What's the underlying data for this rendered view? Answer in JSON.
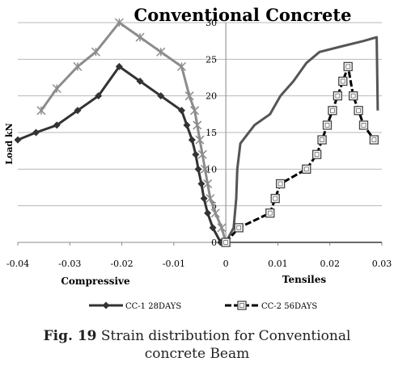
{
  "chart_data": {
    "type": "line",
    "title": "Conventional Concrete",
    "ylabel": "Load kN",
    "xlabel_left": "Compressive",
    "xlabel_right": "Tensiles",
    "xlim": [
      -0.04,
      0.03
    ],
    "ylim": [
      0,
      30
    ],
    "x_ticks": [
      -0.04,
      -0.03,
      -0.02,
      -0.01,
      0,
      0.01,
      0.02,
      0.03
    ],
    "x_tick_labels": [
      "-0.04",
      "-0.03",
      "-0.02",
      "-0.01",
      "0",
      "0.01",
      "0.02",
      "0.03"
    ],
    "y_ticks": [
      0,
      5,
      10,
      15,
      20,
      25,
      30
    ],
    "y_tick_labels": [
      "0",
      "5",
      "10",
      "15",
      "20",
      "25",
      "30"
    ],
    "grid": "horizontal",
    "legend_placement": "bottom",
    "series": [
      {
        "name": "CC-1 28DAYS",
        "color": "#333333",
        "marker": "diamond",
        "points": [
          [
            -0.04,
            14
          ],
          [
            -0.0365,
            15
          ],
          [
            -0.0325,
            16
          ],
          [
            -0.0285,
            18
          ],
          [
            -0.0245,
            20
          ],
          [
            -0.0205,
            24
          ],
          [
            -0.0165,
            22
          ],
          [
            -0.0125,
            20
          ],
          [
            -0.0085,
            18
          ],
          [
            -0.0075,
            16
          ],
          [
            -0.0065,
            14
          ],
          [
            -0.0058,
            12
          ],
          [
            -0.0053,
            10
          ],
          [
            -0.0047,
            8
          ],
          [
            -0.0042,
            6
          ],
          [
            -0.0035,
            4
          ],
          [
            -0.0025,
            2
          ],
          [
            -0.001,
            0
          ],
          [
            0,
            0
          ]
        ]
      },
      {
        "name": "CC-2 56DAYS",
        "color": "#000000",
        "marker": "square",
        "dash": true,
        "points": [
          [
            0,
            0
          ],
          [
            0.0025,
            2
          ],
          [
            0.0085,
            4
          ],
          [
            0.0095,
            6
          ],
          [
            0.0105,
            8
          ],
          [
            0.0155,
            10
          ],
          [
            0.0175,
            12
          ],
          [
            0.0185,
            14
          ],
          [
            0.0195,
            16
          ],
          [
            0.0205,
            18
          ],
          [
            0.0215,
            20
          ],
          [
            0.0225,
            22
          ],
          [
            0.0235,
            24
          ],
          [
            0.0245,
            20
          ],
          [
            0.0255,
            18
          ],
          [
            0.0265,
            16
          ],
          [
            0.0285,
            14
          ]
        ]
      },
      {
        "color": "#8c8c8c",
        "marker": "star",
        "points": [
          [
            -0.0355,
            18
          ],
          [
            -0.0325,
            21
          ],
          [
            -0.0285,
            24
          ],
          [
            -0.025,
            26
          ],
          [
            -0.0205,
            30
          ],
          [
            -0.0165,
            28
          ],
          [
            -0.0125,
            26
          ],
          [
            -0.0085,
            24
          ],
          [
            -0.007,
            20
          ],
          [
            -0.006,
            18
          ],
          [
            -0.0055,
            16
          ],
          [
            -0.005,
            14
          ],
          [
            -0.0045,
            12
          ],
          [
            -0.004,
            10
          ],
          [
            -0.0035,
            8
          ],
          [
            -0.003,
            6
          ],
          [
            -0.002,
            4
          ],
          [
            -0.0008,
            2
          ],
          [
            0,
            0
          ]
        ]
      },
      {
        "color": "#555555",
        "marker": "none",
        "points": [
          [
            0,
            0
          ],
          [
            0.0015,
            2
          ],
          [
            0.002,
            6
          ],
          [
            0.0022,
            10
          ],
          [
            0.0028,
            13.5
          ],
          [
            0.0055,
            16
          ],
          [
            0.0085,
            17.5
          ],
          [
            0.0105,
            20
          ],
          [
            0.013,
            22
          ],
          [
            0.0155,
            24.5
          ],
          [
            0.018,
            26
          ],
          [
            0.0225,
            26.8
          ],
          [
            0.0265,
            27.5
          ],
          [
            0.029,
            28
          ],
          [
            0.0292,
            18
          ]
        ]
      },
      {
        "color": "#6a6a6a",
        "marker": "none",
        "points": [
          [
            0,
            0
          ],
          [
            0.03,
            0
          ]
        ]
      }
    ]
  },
  "caption": {
    "lead": "Fig. 19",
    "line1_rest": " Strain distribution for Conventional",
    "line2": "concrete  Beam"
  }
}
